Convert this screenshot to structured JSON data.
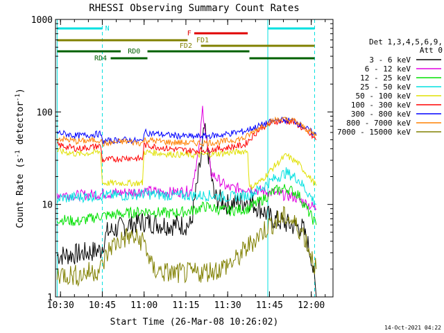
{
  "chart_data": {
    "type": "line",
    "title": "RHESSI Observing Summary Count Rates",
    "xlabel": "Start Time (26-Mar-08 10:26:02)",
    "ylabel": "Count Rate (s",
    "ylabel_sup": "-1",
    "ylabel_tail": " detector",
    "ylabel_tail_sup": "-1",
    "ylabel_end": ")",
    "x_range": [
      10.47,
      12.13
    ],
    "y_range": [
      1,
      1000
    ],
    "y_scale": "log",
    "x_ticks": [
      {
        "t": 10.5,
        "label": "10:30"
      },
      {
        "t": 10.75,
        "label": "10:45"
      },
      {
        "t": 11.0,
        "label": "11:00"
      },
      {
        "t": 11.25,
        "label": "11:15"
      },
      {
        "t": 11.5,
        "label": "11:30"
      },
      {
        "t": 11.75,
        "label": "11:45"
      },
      {
        "t": 12.0,
        "label": "12:00"
      }
    ],
    "y_ticks": [
      {
        "v": 1,
        "label": "1"
      },
      {
        "v": 10,
        "label": "10"
      },
      {
        "v": 100,
        "label": "100"
      },
      {
        "v": 1000,
        "label": "1000"
      }
    ],
    "legend_header": [
      "Det 1,3,4,5,6,9,",
      "Att 0"
    ],
    "legend_placement": "right",
    "series": [
      {
        "name": "3 - 6 keV",
        "color": "#000000",
        "points": [
          [
            10.48,
            2.8
          ],
          [
            10.6,
            2.9
          ],
          [
            10.74,
            3.2
          ],
          [
            10.78,
            5.0
          ],
          [
            10.9,
            6.0
          ],
          [
            11.0,
            6.5
          ],
          [
            11.15,
            6.0
          ],
          [
            11.28,
            6.0
          ],
          [
            11.34,
            30
          ],
          [
            11.36,
            65
          ],
          [
            11.38,
            40
          ],
          [
            11.42,
            12
          ],
          [
            11.5,
            10
          ],
          [
            11.62,
            11
          ],
          [
            11.7,
            9
          ],
          [
            11.76,
            7.0
          ],
          [
            11.85,
            6.2
          ],
          [
            11.95,
            5.5
          ],
          [
            12.0,
            2.8
          ],
          [
            12.03,
            1.0
          ]
        ]
      },
      {
        "name": "6 - 12 keV",
        "color": "#e000e0",
        "points": [
          [
            10.48,
            13
          ],
          [
            10.6,
            12.5
          ],
          [
            10.74,
            13.0
          ],
          [
            10.9,
            13.5
          ],
          [
            11.0,
            14
          ],
          [
            11.15,
            13.5
          ],
          [
            11.28,
            14
          ],
          [
            11.33,
            40
          ],
          [
            11.35,
            110
          ],
          [
            11.37,
            55
          ],
          [
            11.4,
            22
          ],
          [
            11.5,
            15
          ],
          [
            11.62,
            15
          ],
          [
            11.7,
            14
          ],
          [
            11.8,
            13
          ],
          [
            11.9,
            12
          ],
          [
            12.03,
            9
          ]
        ]
      },
      {
        "name": "12 - 25 keV",
        "color": "#00e000",
        "points": [
          [
            10.48,
            7
          ],
          [
            10.6,
            6.5
          ],
          [
            10.74,
            7.5
          ],
          [
            10.9,
            8
          ],
          [
            11.0,
            8.5
          ],
          [
            11.15,
            8
          ],
          [
            11.28,
            8.5
          ],
          [
            11.36,
            9.5
          ],
          [
            11.5,
            8.5
          ],
          [
            11.62,
            9
          ],
          [
            11.7,
            11
          ],
          [
            11.78,
            14
          ],
          [
            11.85,
            15
          ],
          [
            11.92,
            13
          ],
          [
            12.03,
            6
          ]
        ]
      },
      {
        "name": "25 - 50 keV",
        "color": "#00e0e0",
        "points": [
          [
            10.48,
            11.5
          ],
          [
            10.6,
            12
          ],
          [
            10.74,
            12.5
          ],
          [
            10.9,
            12.5
          ],
          [
            11.0,
            13
          ],
          [
            11.15,
            12.5
          ],
          [
            11.28,
            12.5
          ],
          [
            11.4,
            12.5
          ],
          [
            11.5,
            12
          ],
          [
            11.62,
            12.5
          ],
          [
            11.7,
            15
          ],
          [
            11.78,
            19
          ],
          [
            11.85,
            22
          ],
          [
            11.92,
            19
          ],
          [
            12.03,
            10
          ]
        ]
      },
      {
        "name": "50 - 100 keV",
        "color": "#e0e000",
        "points": [
          [
            10.48,
            38
          ],
          [
            10.6,
            35
          ],
          [
            10.74,
            37
          ],
          [
            10.75,
            17
          ],
          [
            10.99,
            17
          ],
          [
            11.0,
            37
          ],
          [
            11.15,
            35
          ],
          [
            11.3,
            34
          ],
          [
            11.5,
            36
          ],
          [
            11.62,
            38
          ],
          [
            11.63,
            15
          ],
          [
            11.7,
            18
          ],
          [
            11.78,
            26
          ],
          [
            11.85,
            34
          ],
          [
            11.92,
            28
          ],
          [
            12.03,
            16
          ]
        ]
      },
      {
        "name": "100 - 300 keV",
        "color": "#ff0000",
        "points": [
          [
            10.48,
            44
          ],
          [
            10.6,
            40
          ],
          [
            10.74,
            43
          ],
          [
            10.75,
            30
          ],
          [
            10.9,
            32
          ],
          [
            10.99,
            31
          ],
          [
            11.0,
            44
          ],
          [
            11.15,
            40
          ],
          [
            11.3,
            38
          ],
          [
            11.45,
            40
          ],
          [
            11.6,
            44
          ],
          [
            11.7,
            68
          ],
          [
            11.8,
            80
          ],
          [
            11.9,
            78
          ],
          [
            12.03,
            50
          ]
        ]
      },
      {
        "name": "300 - 800 keV",
        "color": "#0000ff",
        "points": [
          [
            10.48,
            60
          ],
          [
            10.6,
            55
          ],
          [
            10.74,
            58
          ],
          [
            10.75,
            48
          ],
          [
            10.88,
            50
          ],
          [
            10.99,
            48
          ],
          [
            11.0,
            60
          ],
          [
            11.15,
            56
          ],
          [
            11.3,
            54
          ],
          [
            11.45,
            56
          ],
          [
            11.6,
            62
          ],
          [
            11.7,
            72
          ],
          [
            11.8,
            82
          ],
          [
            11.9,
            80
          ],
          [
            12.03,
            56
          ]
        ]
      },
      {
        "name": "800 - 7000 keV",
        "color": "#ff8000",
        "points": [
          [
            10.48,
            52
          ],
          [
            10.6,
            48
          ],
          [
            10.74,
            50
          ],
          [
            10.75,
            45
          ],
          [
            10.88,
            48
          ],
          [
            10.99,
            46
          ],
          [
            11.0,
            50
          ],
          [
            11.15,
            47
          ],
          [
            11.3,
            46
          ],
          [
            11.45,
            47
          ],
          [
            11.6,
            52
          ],
          [
            11.7,
            70
          ],
          [
            11.8,
            84
          ],
          [
            11.9,
            80
          ],
          [
            12.03,
            55
          ]
        ]
      },
      {
        "name": "7000 - 15000 keV",
        "color": "#808000",
        "points": [
          [
            10.48,
            1.8
          ],
          [
            10.6,
            1.7
          ],
          [
            10.74,
            2.0
          ],
          [
            10.8,
            3.5
          ],
          [
            10.9,
            4.5
          ],
          [
            11.0,
            4.0
          ],
          [
            11.05,
            2.0
          ],
          [
            11.15,
            1.8
          ],
          [
            11.3,
            1.8
          ],
          [
            11.45,
            2.0
          ],
          [
            11.55,
            2.5
          ],
          [
            11.65,
            4.0
          ],
          [
            11.75,
            6.0
          ],
          [
            11.85,
            7.5
          ],
          [
            11.95,
            5.0
          ],
          [
            12.03,
            2.0
          ]
        ]
      },
      {
        "name": "3 - 6 keV",
        "color": "#000000",
        "points": []
      }
    ],
    "status_bars": [
      {
        "label": "N",
        "color": "#00e0e0",
        "segments": [
          [
            10.48,
            10.75
          ],
          [
            11.74,
            12.02
          ]
        ],
        "row": 1,
        "label_at": 10.78
      },
      {
        "label": "F",
        "color": "#e00000",
        "segments": [
          [
            11.3,
            11.62
          ]
        ],
        "row": 2,
        "label_at": 11.27
      },
      {
        "label": "FD1",
        "color": "#808000",
        "segments": [
          [
            10.48,
            11.26
          ]
        ],
        "row": 3,
        "label_at": 11.35
      },
      {
        "label": "FD2",
        "color": "#808000",
        "segments": [
          [
            11.34,
            12.02
          ]
        ],
        "row": 4,
        "label_at": 11.25
      },
      {
        "label": "RD0",
        "color": "#006000",
        "segments": [
          [
            10.48,
            10.86
          ],
          [
            11.02,
            11.63
          ]
        ],
        "row": 5,
        "label_at": 10.94
      },
      {
        "label": "RD4",
        "color": "#006000",
        "segments": [
          [
            10.8,
            11.02
          ],
          [
            11.63,
            12.02
          ]
        ],
        "row": 6,
        "label_at": 10.74
      }
    ],
    "saa_lines": [
      10.48,
      10.75,
      11.74,
      12.02
    ],
    "grid": false
  },
  "timestamp": "14-Oct-2021 04:22"
}
